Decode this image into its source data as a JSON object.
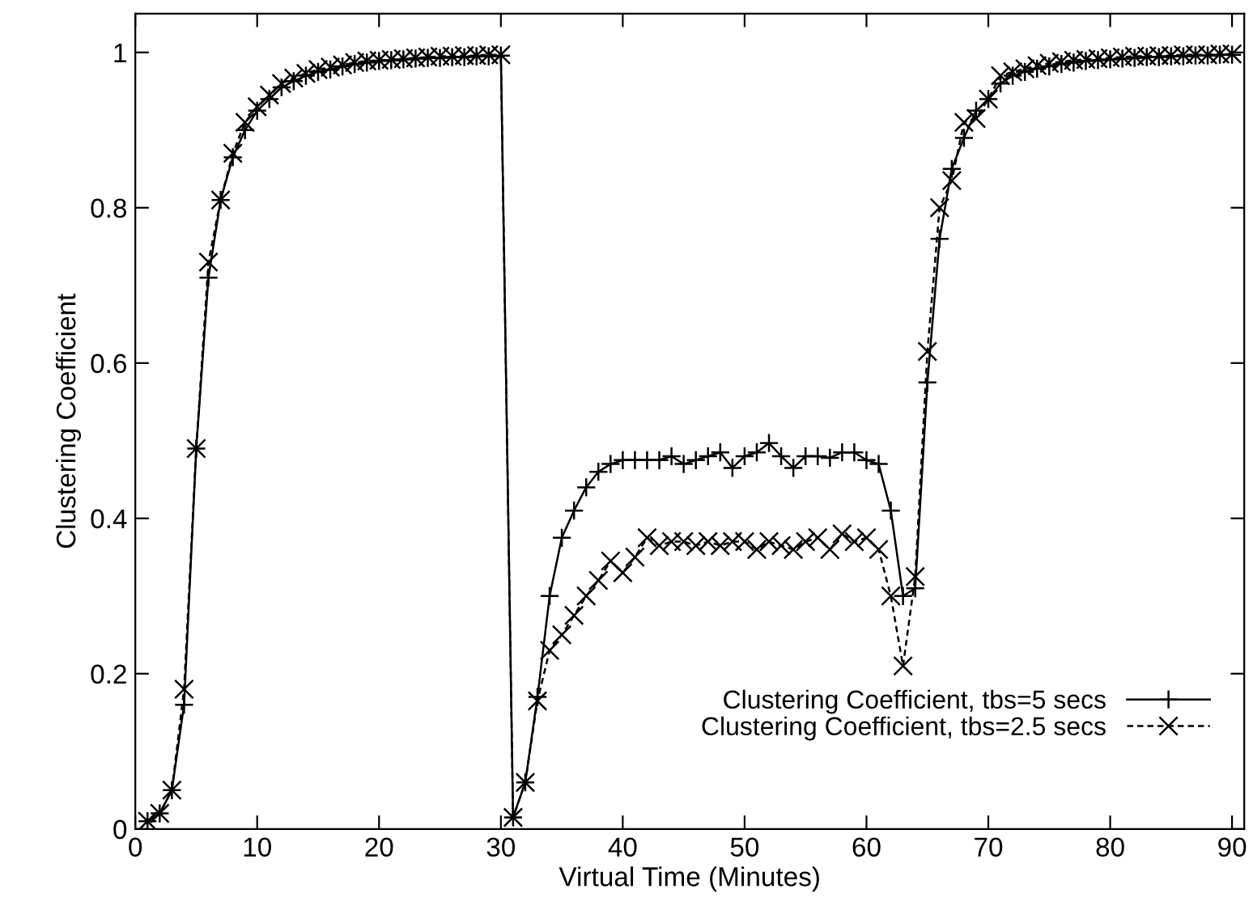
{
  "chart_data": {
    "type": "line",
    "xlabel": "Virtual Time (Minutes)",
    "ylabel": "Clustering Coefficient",
    "xlim": [
      0,
      91
    ],
    "xticks": [
      0,
      10,
      20,
      30,
      40,
      50,
      60,
      70,
      80,
      90
    ],
    "ylim": [
      0,
      1.05
    ],
    "yticks": [
      0,
      0.2,
      0.4,
      0.6,
      0.8,
      1
    ],
    "grid": false,
    "legend": "bottom right",
    "x": [
      1,
      2,
      3,
      4,
      5,
      6,
      7,
      8,
      9,
      10,
      11,
      12,
      13,
      14,
      15,
      16,
      17,
      18,
      19,
      20,
      21,
      22,
      23,
      24,
      25,
      26,
      27,
      28,
      29,
      30,
      31,
      32,
      33,
      34,
      35,
      36,
      37,
      38,
      39,
      40,
      41,
      42,
      43,
      44,
      45,
      46,
      47,
      48,
      49,
      50,
      51,
      52,
      53,
      54,
      55,
      56,
      57,
      58,
      59,
      60,
      61,
      62,
      63,
      64,
      65,
      66,
      67,
      68,
      69,
      70,
      71,
      72,
      73,
      74,
      75,
      76,
      77,
      78,
      79,
      80,
      81,
      82,
      83,
      84,
      85,
      86,
      87,
      88,
      89,
      90
    ],
    "series": [
      {
        "name": "Clustering Coefficient, tbs=5 secs",
        "color": "#000000",
        "marker": "cross",
        "line_style": "solid",
        "values": [
          0.01,
          0.02,
          0.05,
          0.16,
          0.49,
          0.71,
          0.81,
          0.865,
          0.9,
          0.925,
          0.94,
          0.955,
          0.963,
          0.97,
          0.975,
          0.978,
          0.982,
          0.985,
          0.987,
          0.989,
          0.99,
          0.991,
          0.992,
          0.993,
          0.993,
          0.994,
          0.994,
          0.995,
          0.995,
          0.996,
          0.015,
          0.06,
          0.17,
          0.3,
          0.375,
          0.41,
          0.44,
          0.46,
          0.47,
          0.475,
          0.475,
          0.475,
          0.475,
          0.48,
          0.47,
          0.475,
          0.48,
          0.485,
          0.465,
          0.48,
          0.485,
          0.497,
          0.48,
          0.465,
          0.48,
          0.48,
          0.478,
          0.485,
          0.485,
          0.475,
          0.47,
          0.41,
          0.3,
          0.31,
          0.575,
          0.76,
          0.85,
          0.89,
          0.925,
          0.94,
          0.96,
          0.97,
          0.975,
          0.979,
          0.982,
          0.985,
          0.987,
          0.989,
          0.99,
          0.991,
          0.992,
          0.993,
          0.994,
          0.994,
          0.995,
          0.995,
          0.996,
          0.996,
          0.997,
          0.997
        ]
      },
      {
        "name": "Clustering Coefficient, tbs=2.5 secs",
        "color": "#000000",
        "marker": "x",
        "line_style": "dashed",
        "values": [
          0.01,
          0.02,
          0.05,
          0.18,
          0.49,
          0.73,
          0.81,
          0.87,
          0.91,
          0.93,
          0.945,
          0.96,
          0.967,
          0.973,
          0.978,
          0.981,
          0.984,
          0.987,
          0.989,
          0.99,
          0.991,
          0.992,
          0.993,
          0.994,
          0.995,
          0.995,
          0.996,
          0.996,
          0.997,
          0.997,
          0.015,
          0.06,
          0.165,
          0.23,
          0.25,
          0.275,
          0.3,
          0.32,
          0.345,
          0.33,
          0.35,
          0.375,
          0.365,
          0.37,
          0.37,
          0.365,
          0.37,
          0.365,
          0.37,
          0.37,
          0.36,
          0.37,
          0.365,
          0.36,
          0.37,
          0.375,
          0.36,
          0.38,
          0.37,
          0.375,
          0.36,
          0.3,
          0.21,
          0.325,
          0.615,
          0.8,
          0.835,
          0.91,
          0.915,
          0.94,
          0.97,
          0.975,
          0.979,
          0.983,
          0.986,
          0.988,
          0.99,
          0.991,
          0.992,
          0.993,
          0.994,
          0.995,
          0.995,
          0.996,
          0.996,
          0.997,
          0.997,
          0.997,
          0.998,
          0.998
        ]
      }
    ]
  }
}
